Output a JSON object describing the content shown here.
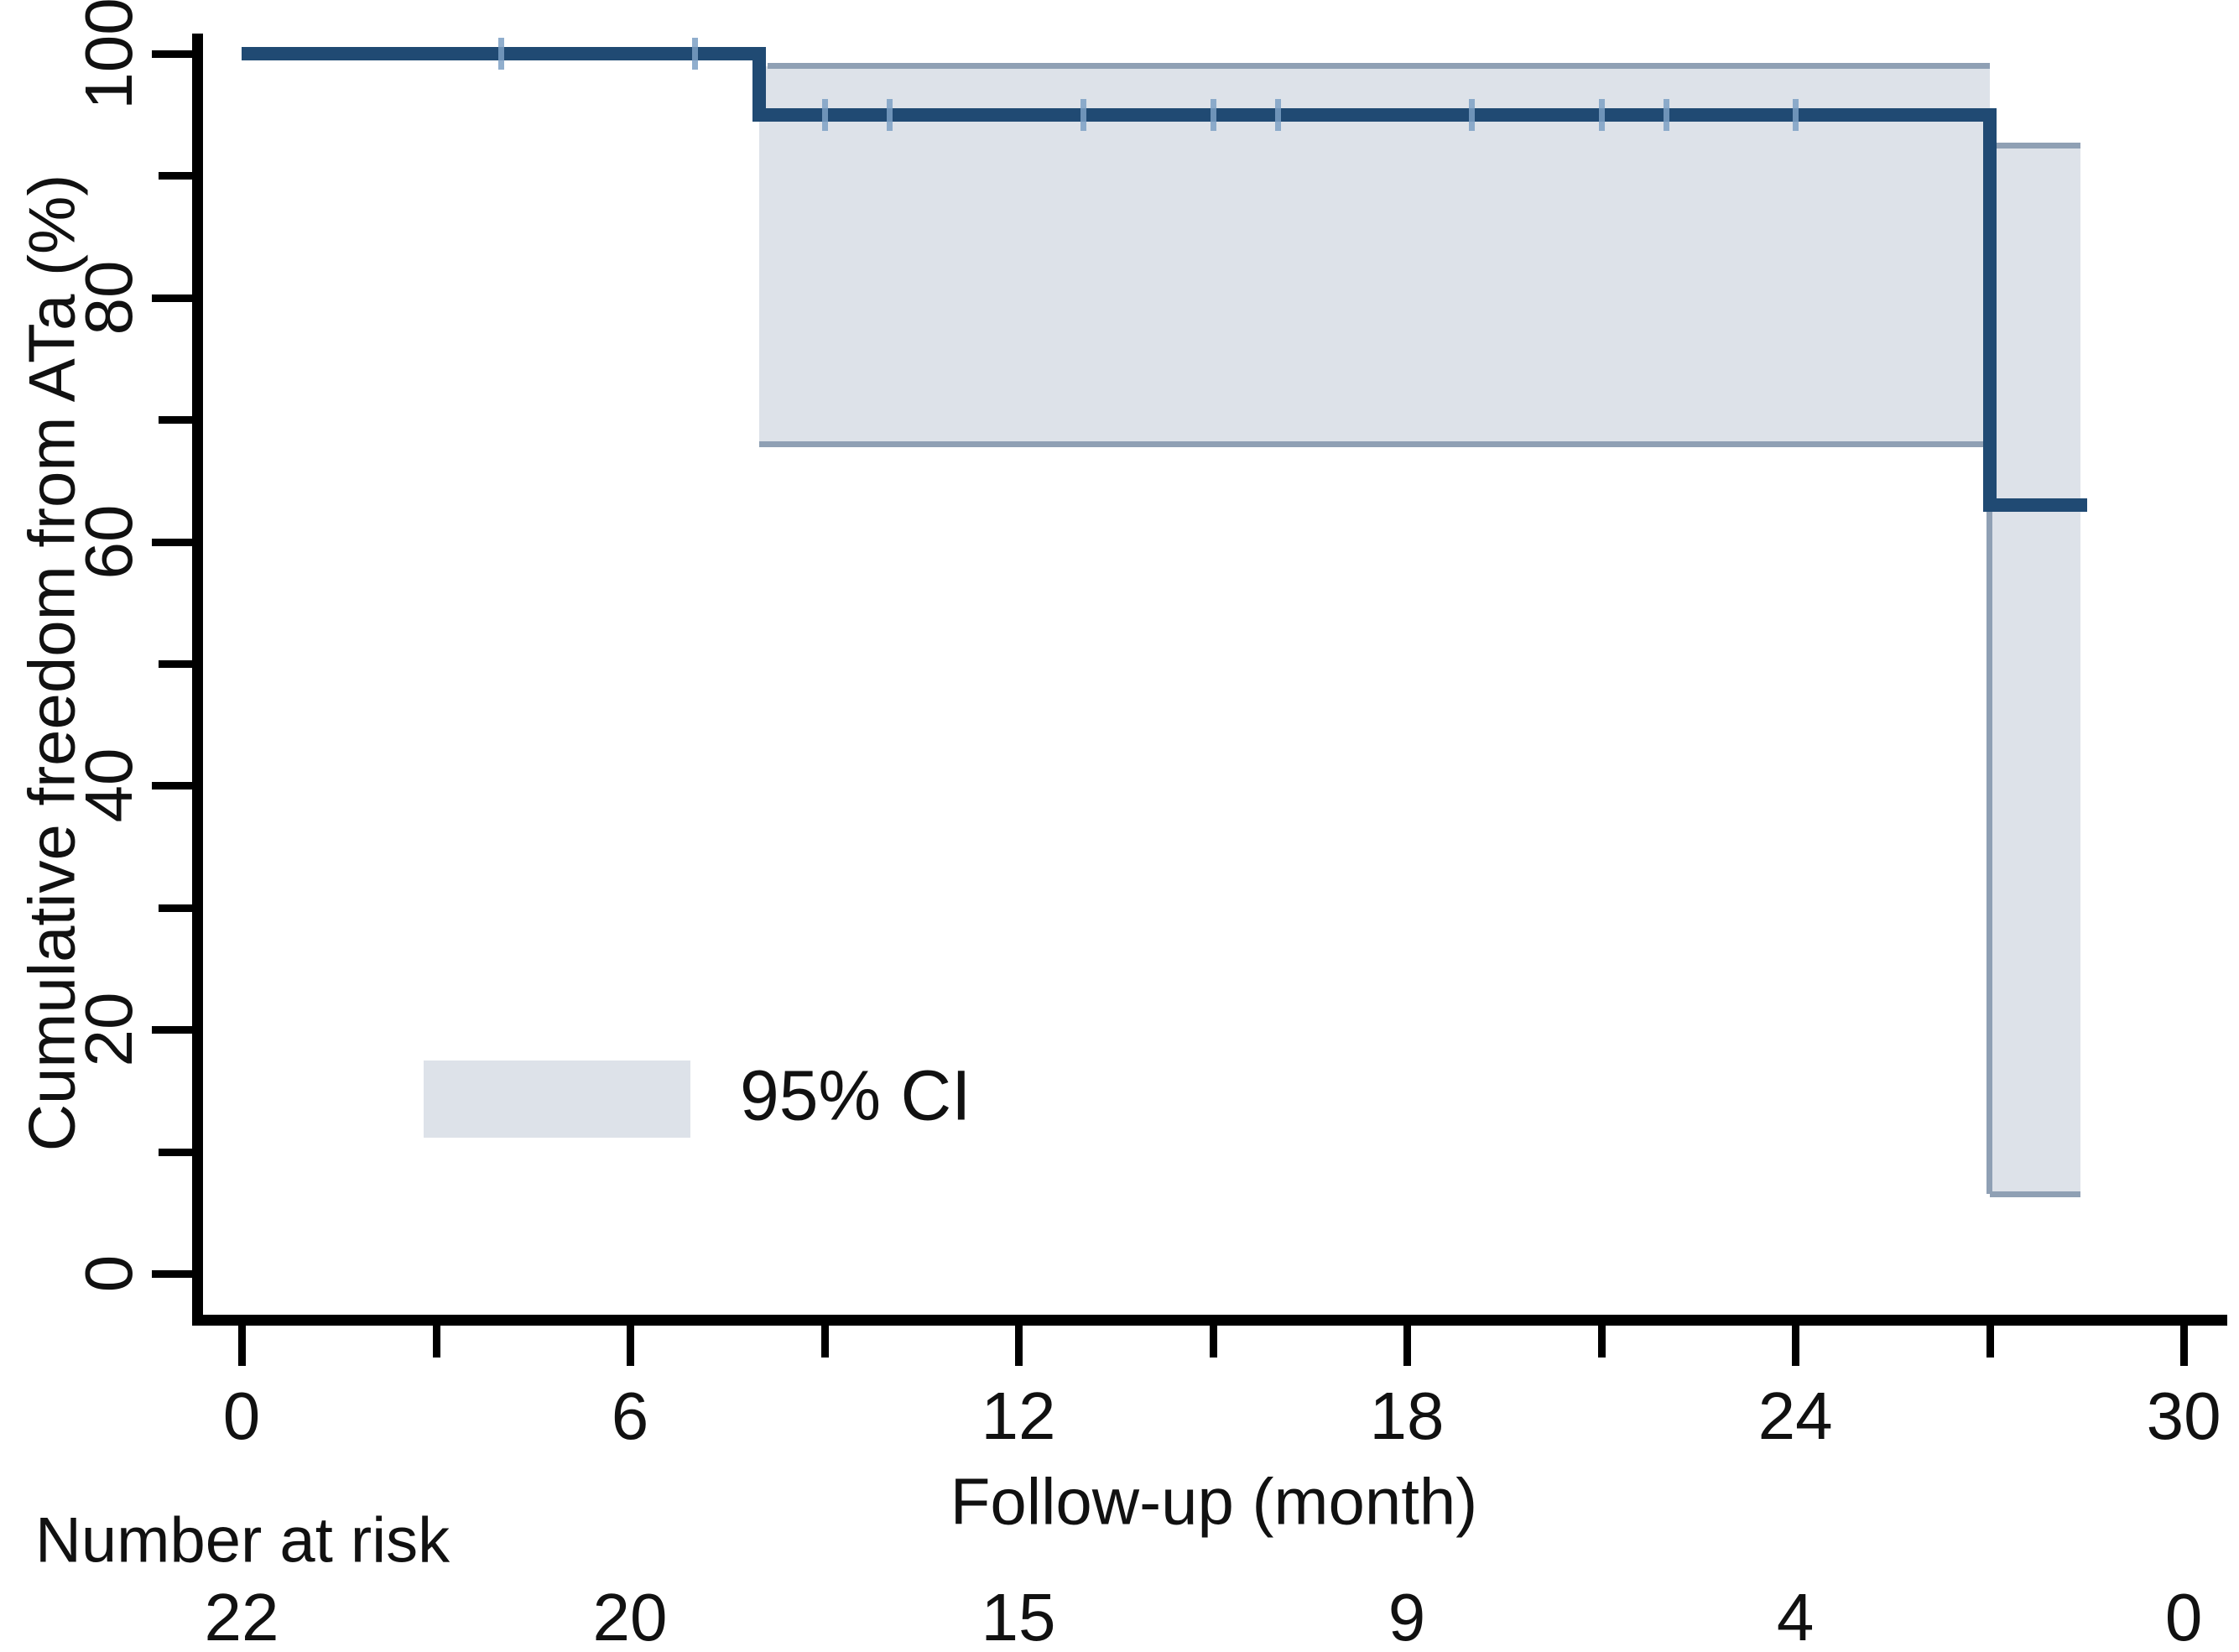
{
  "chart_data": {
    "type": "line",
    "subtype": "kaplan-meier-step",
    "xlabel": "Follow-up (month)",
    "ylabel": "Cumulative freedom from ATa (%)",
    "xlim": [
      0,
      30
    ],
    "ylim": [
      0,
      100
    ],
    "x_ticks_major": [
      0,
      6,
      12,
      18,
      24,
      30
    ],
    "x_ticks_minor": [
      3,
      9,
      15,
      21,
      27
    ],
    "y_ticks_major": [
      0,
      20,
      40,
      60,
      80,
      100
    ],
    "y_ticks_minor": [
      10,
      30,
      50,
      70,
      90
    ],
    "grid": false,
    "series": [
      {
        "name": "Cumulative freedom from ATa",
        "step_points": [
          {
            "t": 0,
            "value": 100
          },
          {
            "t": 8,
            "value": 95
          },
          {
            "t": 27,
            "value": 63
          },
          {
            "t": 28.4,
            "value": 63
          }
        ]
      }
    ],
    "ci_segments": [
      {
        "t_start": 8,
        "t_end": 27,
        "upper": 99,
        "lower": 68
      },
      {
        "t_start": 27,
        "t_end": 28.4,
        "upper": 92.5,
        "lower": 6.5
      }
    ],
    "censor_marks": [
      {
        "t": 4,
        "value": 100
      },
      {
        "t": 7,
        "value": 100
      },
      {
        "t": 9,
        "value": 95
      },
      {
        "t": 10,
        "value": 95
      },
      {
        "t": 13,
        "value": 95
      },
      {
        "t": 15,
        "value": 95
      },
      {
        "t": 16,
        "value": 95
      },
      {
        "t": 19,
        "value": 95
      },
      {
        "t": 21,
        "value": 95
      },
      {
        "t": 22,
        "value": 95
      },
      {
        "t": 24,
        "value": 95
      }
    ],
    "legend": {
      "position": "inside-lower-left",
      "entries": [
        {
          "label": "95% CI",
          "swatch": "band"
        }
      ]
    },
    "number_at_risk": {
      "label": "Number at risk",
      "times": [
        0,
        6,
        12,
        18,
        24,
        30
      ],
      "values": [
        22,
        20,
        15,
        9,
        4,
        0
      ]
    }
  },
  "labels": {
    "y_axis_title": "Cumulative freedom from ATa (%)",
    "x_axis_title": "Follow-up (month)",
    "legend_ci": "95% CI",
    "number_at_risk": "Number at risk"
  },
  "colors": {
    "km_line": "#204a73",
    "ci_band_fill": "#dde2e9",
    "ci_band_edge": "#8fa0b4",
    "censor_mark": "#7da0c4",
    "axis": "#000000",
    "text": "#111111",
    "background": "#ffffff"
  }
}
